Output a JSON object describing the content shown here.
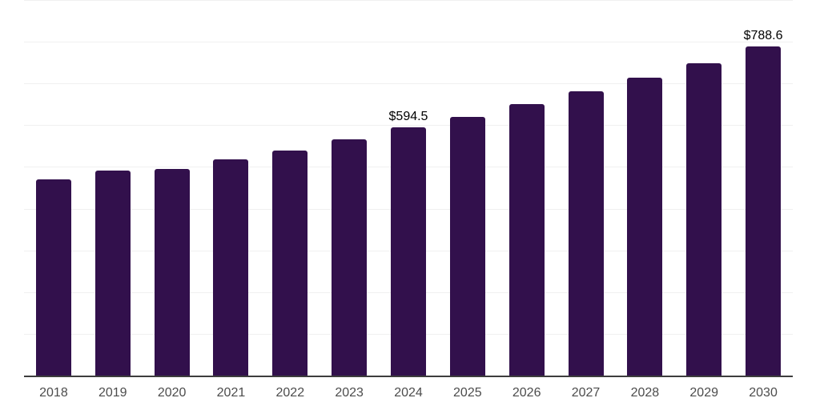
{
  "chart_data": {
    "type": "bar",
    "title": "",
    "xlabel": "",
    "ylabel": "",
    "categories": [
      "2018",
      "2019",
      "2020",
      "2021",
      "2022",
      "2023",
      "2024",
      "2025",
      "2026",
      "2027",
      "2028",
      "2029",
      "2030"
    ],
    "values": [
      470.8,
      491.7,
      495.5,
      518.3,
      539.3,
      566.0,
      594.5,
      619.4,
      649.9,
      680.4,
      714.7,
      749.0,
      788.6
    ],
    "data_labels": [
      "",
      "",
      "",
      "",
      "",
      "",
      "$594.5",
      "",
      "",
      "",
      "",
      "",
      "$788.6"
    ],
    "ylim": [
      0,
      900
    ],
    "grid_step": 100,
    "grid": "horizontal",
    "legend": "none",
    "colors": {
      "bar": "#32104c",
      "axis_line": "#3d3d3d",
      "gridline": "#f0f0f0",
      "tick_label": "#4c4c4c",
      "data_label": "#000000",
      "background": "#ffffff"
    }
  }
}
